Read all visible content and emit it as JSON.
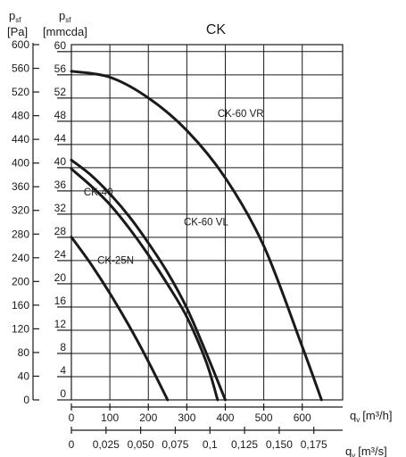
{
  "chart_data": {
    "type": "line",
    "title": "CK",
    "y_pa_axis": {
      "symbol": "p",
      "subscript": "sf",
      "unit": "[Pa]",
      "range": [
        0,
        600
      ],
      "ticks": [
        0,
        40,
        80,
        120,
        160,
        200,
        240,
        280,
        320,
        360,
        400,
        440,
        480,
        520,
        560,
        600
      ]
    },
    "y_mm_axis": {
      "symbol": "p",
      "subscript": "sf",
      "unit": "[mmcda]",
      "range": [
        0,
        61.2
      ],
      "ticks": [
        0,
        4,
        8,
        12,
        16,
        20,
        24,
        28,
        32,
        36,
        40,
        44,
        48,
        52,
        56,
        60
      ]
    },
    "x_m3h_axis": {
      "symbol": "q",
      "subscript": "v",
      "unit": "[m³/h]",
      "range": [
        0,
        705
      ],
      "ticks": [
        0,
        100,
        200,
        300,
        400,
        500,
        600
      ]
    },
    "x_m3s_axis": {
      "symbol": "q",
      "subscript": "v",
      "unit": "[m³/s]",
      "range": [
        0,
        0.1958
      ],
      "ticks": [
        {
          "value": 0,
          "label": "0"
        },
        {
          "value": 0.025,
          "label": "0,025"
        },
        {
          "value": 0.05,
          "label": "0,050"
        },
        {
          "value": 0.075,
          "label": "0,075"
        },
        {
          "value": 0.1,
          "label": "0,1"
        },
        {
          "value": 0.125,
          "label": "0,125"
        },
        {
          "value": 0.15,
          "label": "0,150"
        },
        {
          "value": 0.175,
          "label": "0,175"
        }
      ]
    },
    "grid": true,
    "series": [
      {
        "name": "CK-60 VR",
        "x": [
          0,
          100,
          200,
          300,
          400,
          500,
          600,
          650
        ],
        "y": [
          555,
          545,
          510,
          455,
          375,
          260,
          90,
          0
        ]
      },
      {
        "name": "CK-60 VL",
        "x": [
          0,
          50,
          100,
          150,
          200,
          250,
          300,
          350,
          400
        ],
        "y": [
          405,
          380,
          348,
          310,
          265,
          215,
          155,
          80,
          0
        ]
      },
      {
        "name": "CK-40",
        "x": [
          0,
          50,
          100,
          150,
          200,
          250,
          300,
          350,
          380
        ],
        "y": [
          390,
          362,
          330,
          290,
          245,
          195,
          140,
          65,
          0
        ]
      },
      {
        "name": "CK-25N",
        "x": [
          0,
          50,
          100,
          150,
          200,
          250
        ],
        "y": [
          275,
          230,
          180,
          125,
          65,
          0
        ]
      }
    ]
  }
}
